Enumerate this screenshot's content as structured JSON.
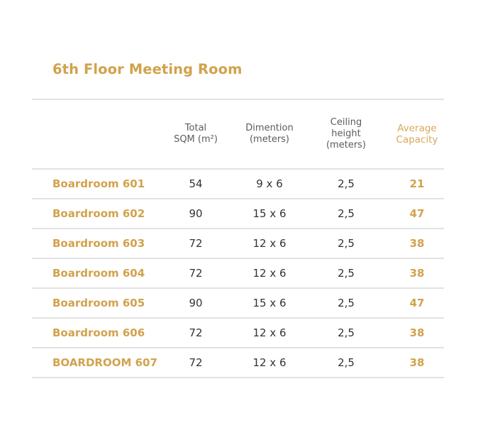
{
  "title": "6th Floor Meeting Room",
  "table": {
    "headers": {
      "room": "",
      "sqm": "Total\nSQM (m²)",
      "dimension": "Dimention\n(meters)",
      "ceiling": "Ceiling\nheight\n(meters)",
      "capacity": "Average\nCapacity"
    },
    "rows": [
      {
        "name": "Boardroom 601",
        "sqm": "54",
        "dimension": "9 x 6",
        "ceiling": "2,5",
        "capacity": "21"
      },
      {
        "name": "Boardroom 602",
        "sqm": "90",
        "dimension": "15 x 6",
        "ceiling": "2,5",
        "capacity": "47"
      },
      {
        "name": "Boardroom 603",
        "sqm": "72",
        "dimension": "12 x 6",
        "ceiling": "2,5",
        "capacity": "38"
      },
      {
        "name": "Boardroom 604",
        "sqm": "72",
        "dimension": "12 x 6",
        "ceiling": "2,5",
        "capacity": "38"
      },
      {
        "name": "Boardroom 605",
        "sqm": "90",
        "dimension": "15 x 6",
        "ceiling": "2,5",
        "capacity": "47"
      },
      {
        "name": "Boardroom 606",
        "sqm": "72",
        "dimension": "12 x 6",
        "ceiling": "2,5",
        "capacity": "38"
      },
      {
        "name": "BOARDROOM 607",
        "sqm": "72",
        "dimension": "12 x 6",
        "ceiling": "2,5",
        "capacity": "38"
      }
    ]
  },
  "colors": {
    "accent_gold": "#D2A24C",
    "rule_gray": "#E2E2E2",
    "text_dark": "#333333",
    "header_gray": "#5b5b5b"
  }
}
